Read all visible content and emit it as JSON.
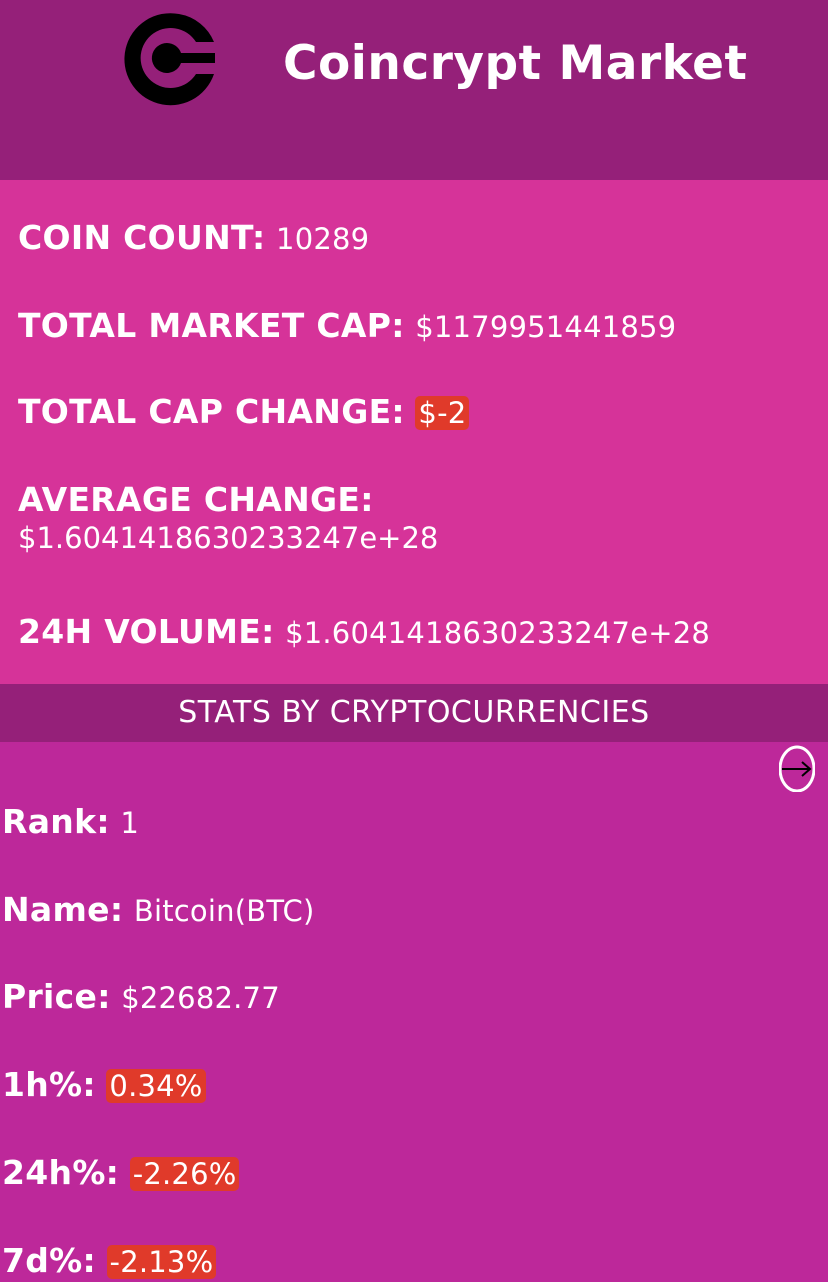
{
  "header": {
    "logo_icon": "coincrypt-c-logo",
    "title": "Coincrypt Market"
  },
  "summary": {
    "coin_count_label": "COIN COUNT:",
    "coin_count_value": "10289",
    "market_cap_label": "TOTAL MARKET CAP:",
    "market_cap_value": "$1179951441859",
    "cap_change_label": "TOTAL CAP CHANGE:",
    "cap_change_value": "$-2",
    "avg_change_label": "AVERAGE CHANGE:",
    "avg_change_value": "$1.6041418630233247e+28",
    "volume_label": "24H VOLUME:",
    "volume_value": "$1.6041418630233247e+28"
  },
  "section": {
    "title": "STATS BY CRYPTOCURRENCIES",
    "next_icon": "arrow-right-circle-icon"
  },
  "coin": {
    "rank_label": "Rank:",
    "rank_value": "1",
    "name_label": "Name:",
    "name_value": "Bitcoin(BTC)",
    "price_label": "Price:",
    "price_value": "$22682.77",
    "h1_label": "1h%:",
    "h1_value": "0.34%",
    "h24_label": "24h%:",
    "h24_value": "-2.26%",
    "d7_label": "7d%:",
    "d7_value": "-2.13%"
  },
  "colors": {
    "header_bg": "#952079",
    "summary_bg": "#d63399",
    "panel_bg": "#bd289a",
    "negative_badge": "#e03a2a"
  }
}
